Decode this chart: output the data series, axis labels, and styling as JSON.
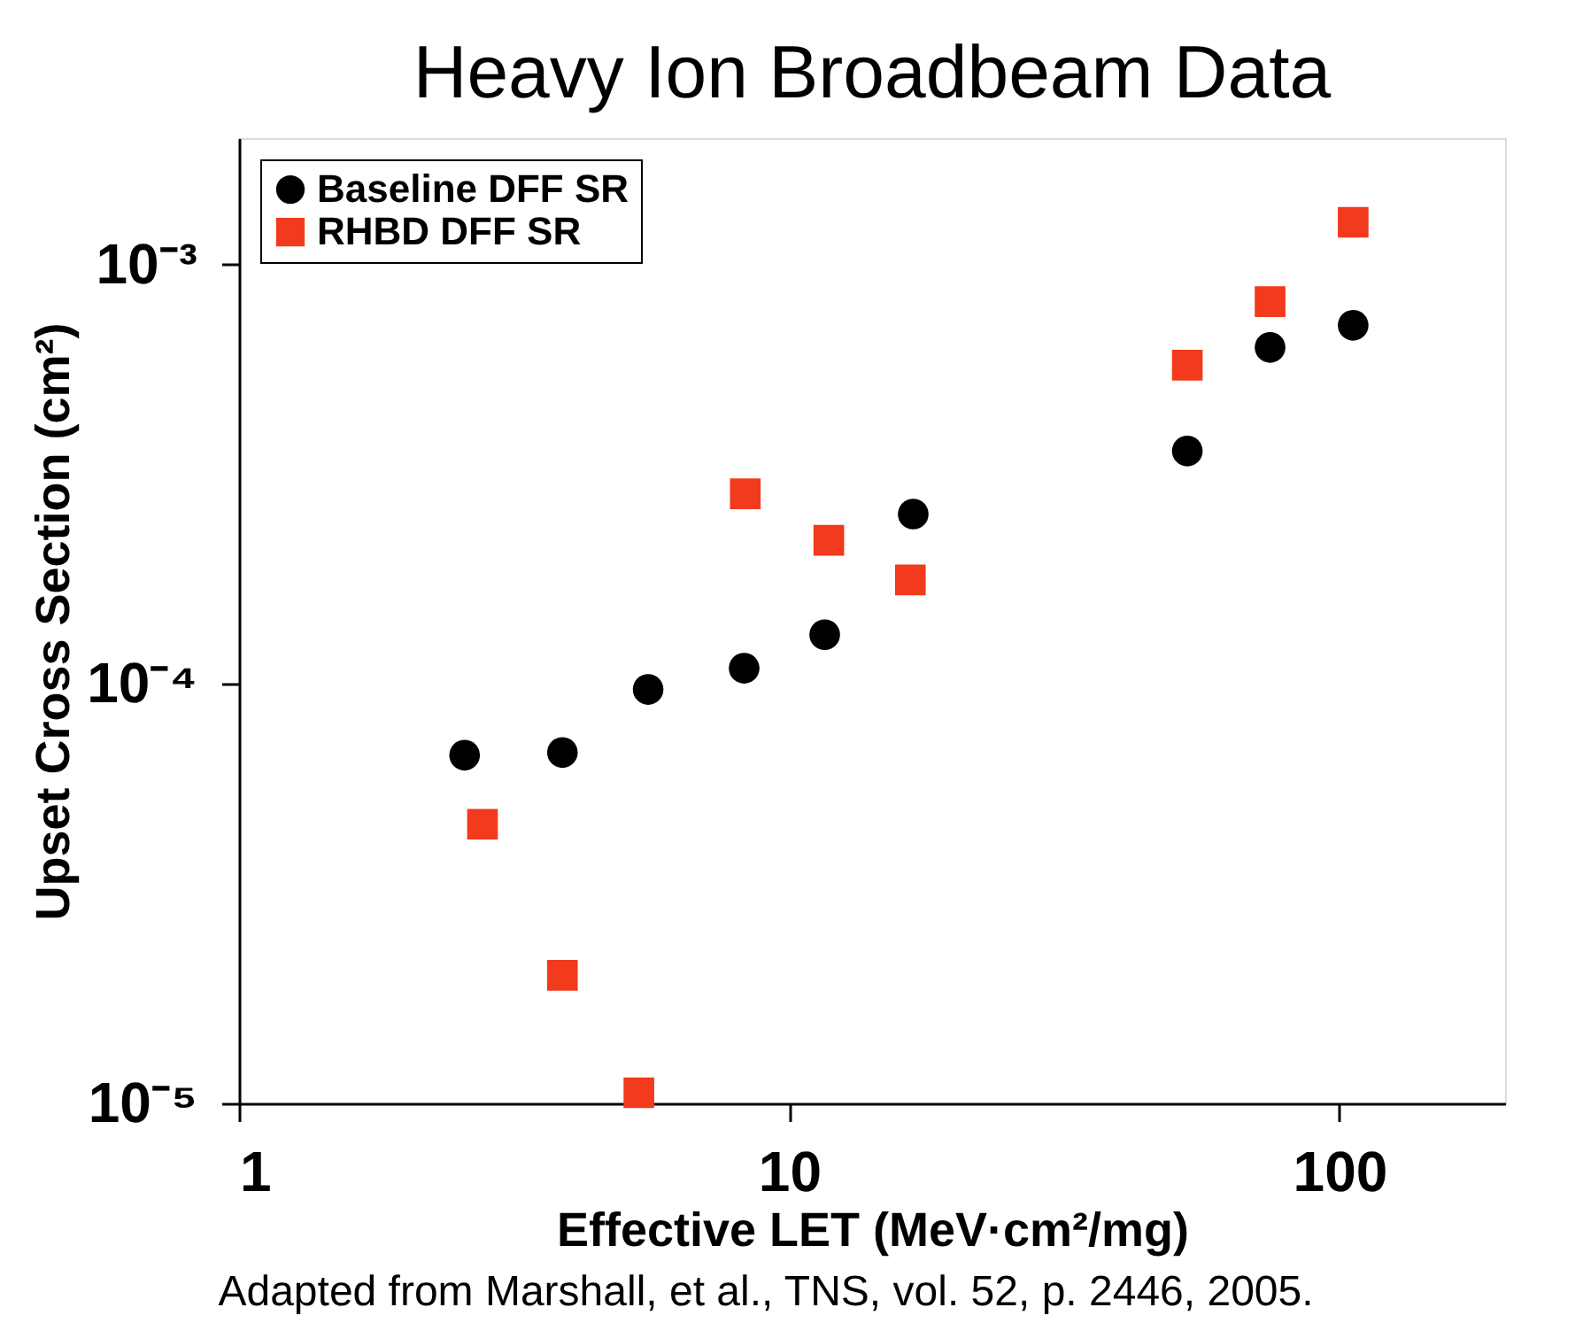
{
  "chart_data": {
    "type": "scatter",
    "title": "Heavy Ion Broadbeam Data",
    "xlabel": "Effective LET (MeV·cm²/mg)",
    "ylabel": "Upset Cross Section (cm²)",
    "annotations": [
      "Adapted from Marshall, et al., TNS, vol. 52, p. 2446, 2005."
    ],
    "log": "xy",
    "xlim": [
      1,
      200
    ],
    "ylim": [
      1e-05,
      0.002
    ],
    "xticks": [
      1,
      10,
      100
    ],
    "yticks": [
      {
        "value": 1e-05,
        "label": "10⁻⁵"
      },
      {
        "value": 0.0001,
        "label": "10⁻⁴"
      },
      {
        "value": 0.001,
        "label": "10⁻³"
      }
    ],
    "grid": false,
    "legend": "top left",
    "series": [
      {
        "name": "Baseline DFF SR",
        "color": "#000000",
        "marker": "circle",
        "x": [
          2.57,
          3.87,
          5.54,
          8.28,
          11.6,
          16.8,
          52.9,
          74.8,
          105.9
        ],
        "values": [
          6.76e-05,
          6.86e-05,
          9.7e-05,
          0.000109,
          0.000131,
          0.000254,
          0.000359,
          0.000634,
          0.000716
        ]
      },
      {
        "name": "RHBD DFF SR",
        "color": "#f23a1d",
        "marker": "square",
        "x": [
          2.77,
          3.87,
          5.33,
          8.32,
          11.8,
          16.6,
          52.9,
          74.8,
          105.9
        ],
        "values": [
          4.63e-05,
          2.02e-05,
          1.06e-05,
          0.000284,
          0.00022,
          0.000177,
          0.000575,
          0.000815,
          0.00126
        ]
      }
    ]
  }
}
